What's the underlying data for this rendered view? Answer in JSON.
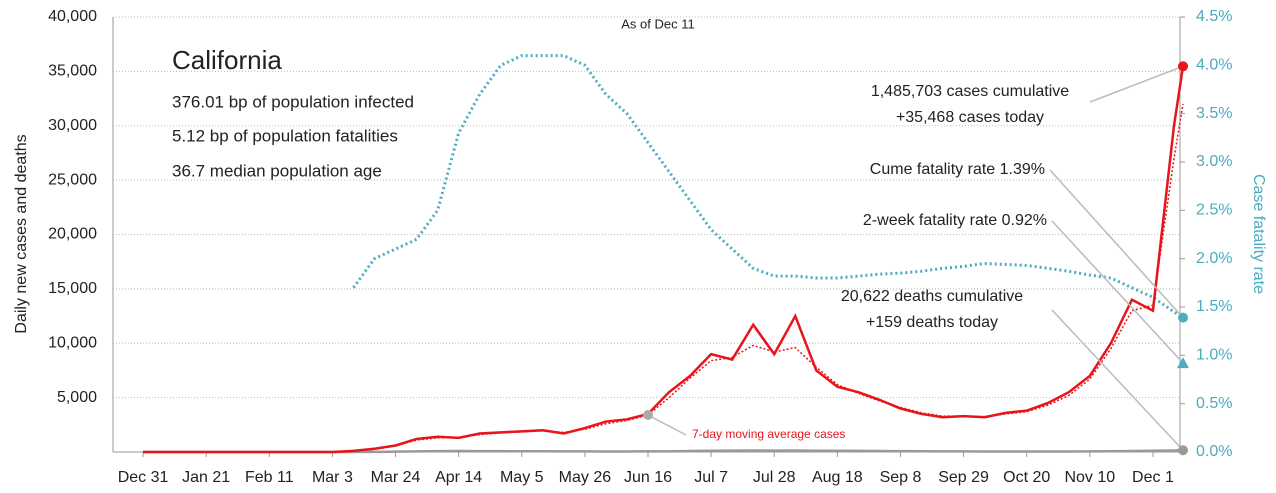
{
  "chart_data": {
    "type": "line",
    "title": "California",
    "note": "As of Dec 11",
    "info": [
      "376.01 bp of population infected",
      "5.12 bp of population fatalities",
      "36.7 median population age"
    ],
    "ylabel": "Daily new cases and deaths",
    "y2label": "Case fatality rate",
    "x": [
      0,
      7,
      14,
      21,
      28,
      35,
      42,
      49,
      56,
      63,
      70,
      77,
      84,
      91,
      98,
      105,
      112,
      119,
      126,
      133,
      140,
      147,
      154,
      161,
      168,
      175,
      182,
      189,
      196,
      203,
      210,
      217,
      224,
      231,
      238,
      245,
      252,
      259,
      266,
      273,
      280,
      287,
      294,
      301,
      308,
      315,
      322,
      329,
      336,
      343,
      346
    ],
    "xlim": [
      -10,
      345
    ],
    "xticks": [
      {
        "value": 0,
        "label": "Dec 31"
      },
      {
        "value": 21,
        "label": "Jan 21"
      },
      {
        "value": 42,
        "label": "Feb 11"
      },
      {
        "value": 63,
        "label": "Mar 3"
      },
      {
        "value": 84,
        "label": "Mar 24"
      },
      {
        "value": 105,
        "label": "Apr 14"
      },
      {
        "value": 126,
        "label": "May 5"
      },
      {
        "value": 147,
        "label": "May 26"
      },
      {
        "value": 168,
        "label": "Jun 16"
      },
      {
        "value": 189,
        "label": "Jul 7"
      },
      {
        "value": 210,
        "label": "Jul 28"
      },
      {
        "value": 231,
        "label": "Aug 18"
      },
      {
        "value": 252,
        "label": "Sep 8"
      },
      {
        "value": 273,
        "label": "Sep 29"
      },
      {
        "value": 294,
        "label": "Oct 20"
      },
      {
        "value": 315,
        "label": "Nov 10"
      },
      {
        "value": 336,
        "label": "Dec 1"
      }
    ],
    "ylim": [
      0,
      40000
    ],
    "yticks": [
      {
        "value": 5000,
        "label": "5,000"
      },
      {
        "value": 10000,
        "label": "10,000"
      },
      {
        "value": 15000,
        "label": "15,000"
      },
      {
        "value": 20000,
        "label": "20,000"
      },
      {
        "value": 25000,
        "label": "25,000"
      },
      {
        "value": 30000,
        "label": "30,000"
      },
      {
        "value": 35000,
        "label": "35,000"
      },
      {
        "value": 40000,
        "label": "40,000"
      }
    ],
    "y2lim": [
      0,
      4.5
    ],
    "y2ticks": [
      {
        "value": 0,
        "label": "0.0%"
      },
      {
        "value": 0.5,
        "label": "0.5%"
      },
      {
        "value": 1,
        "label": "1.0%"
      },
      {
        "value": 1.5,
        "label": "1.5%"
      },
      {
        "value": 2,
        "label": "2.0%"
      },
      {
        "value": 2.5,
        "label": "2.5%"
      },
      {
        "value": 3,
        "label": "3.0%"
      },
      {
        "value": 3.5,
        "label": "3.5%"
      },
      {
        "value": 4,
        "label": "4.0%"
      },
      {
        "value": 4.5,
        "label": "4.5%"
      }
    ],
    "grid": true,
    "series": [
      {
        "color": "#4bacc0",
        "style": "dotted",
        "axis": "y2",
        "values": [
          null,
          null,
          null,
          null,
          null,
          null,
          null,
          null,
          null,
          null,
          1.7,
          2.0,
          2.1,
          2.2,
          2.5,
          3.3,
          3.7,
          4.0,
          4.1,
          4.1,
          4.1,
          4.0,
          3.7,
          3.5,
          3.2,
          2.9,
          2.6,
          2.3,
          2.1,
          1.9,
          1.82,
          1.82,
          1.8,
          1.8,
          1.82,
          1.84,
          1.85,
          1.87,
          1.9,
          1.92,
          1.95,
          1.94,
          1.93,
          1.9,
          1.87,
          1.83,
          1.8,
          1.7,
          1.6,
          1.45,
          1.39
        ]
      },
      {
        "color": "#999999",
        "style": "solid",
        "values": [
          0,
          0,
          0,
          0,
          0,
          0,
          0,
          0,
          0,
          0,
          2,
          10,
          30,
          60,
          80,
          90,
          80,
          75,
          70,
          65,
          60,
          55,
          50,
          50,
          55,
          60,
          90,
          110,
          130,
          140,
          130,
          140,
          120,
          110,
          100,
          90,
          80,
          70,
          60,
          55,
          50,
          45,
          45,
          45,
          50,
          60,
          70,
          90,
          110,
          140,
          159
        ]
      },
      {
        "color": "#e8141c",
        "style": "dotted",
        "values": [
          0,
          0,
          0,
          0,
          0,
          0,
          0,
          0,
          0,
          0,
          80,
          250,
          550,
          1100,
          1300,
          1350,
          1600,
          1750,
          1850,
          1950,
          1800,
          2100,
          2600,
          2900,
          3400,
          5000,
          6800,
          8400,
          8700,
          9800,
          9200,
          9600,
          7800,
          6200,
          5400,
          4700,
          4100,
          3600,
          3300,
          3300,
          3250,
          3500,
          3700,
          4300,
          5200,
          6700,
          9500,
          13000,
          13500,
          27000,
          32000
        ]
      },
      {
        "color": "#e8141c",
        "style": "solid",
        "values": [
          0,
          0,
          0,
          0,
          0,
          0,
          0,
          0,
          0,
          0,
          100,
          300,
          600,
          1200,
          1400,
          1300,
          1700,
          1800,
          1900,
          2000,
          1700,
          2200,
          2800,
          3000,
          3500,
          5500,
          7000,
          9000,
          8500,
          11700,
          9000,
          12500,
          7500,
          6000,
          5500,
          4800,
          4000,
          3500,
          3200,
          3300,
          3200,
          3600,
          3800,
          4500,
          5500,
          7000,
          10000,
          14000,
          13000,
          30000,
          35468
        ]
      }
    ],
    "markers": [
      {
        "value": 0.92,
        "axis": "y2",
        "color": "#4bacc0"
      }
    ],
    "annotations": [
      {
        "text": "1,485,703 cases cumulative"
      },
      {
        "text": "+35,468 cases today"
      },
      {
        "text": "Cume fatality rate 1.39%"
      },
      {
        "text": "2-week fatality rate 0.92%"
      },
      {
        "text": "20,622 deaths cumulative"
      },
      {
        "text": "+159 deaths today"
      },
      {
        "text": "7-day moving average cases",
        "color": "#e8141c"
      }
    ]
  }
}
